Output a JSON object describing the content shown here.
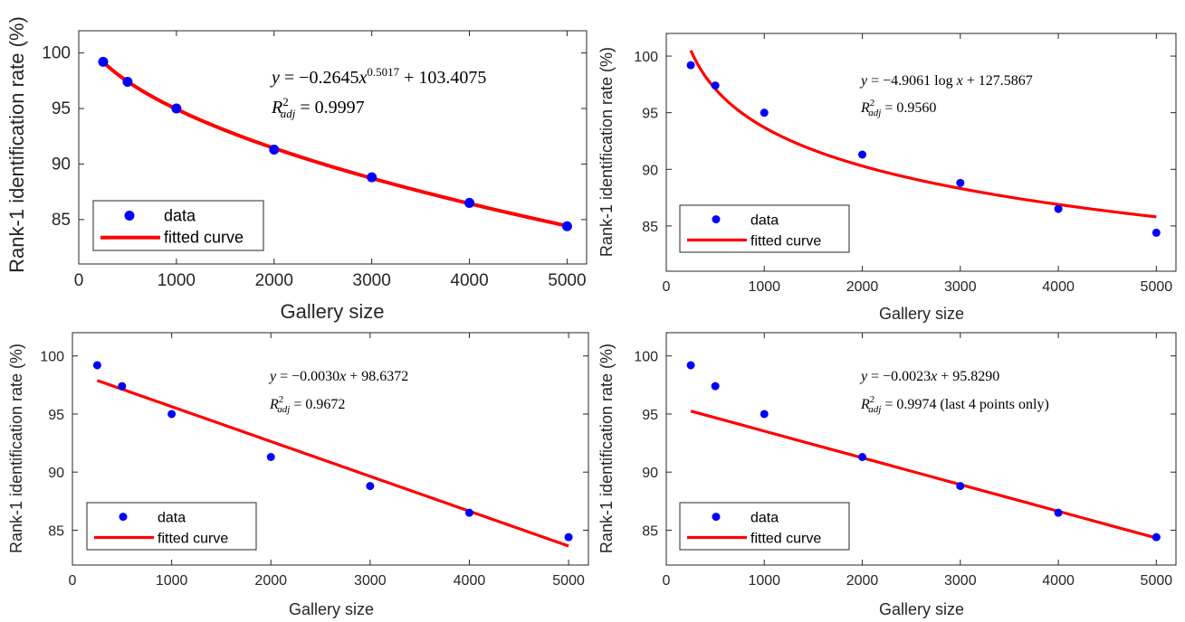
{
  "chart_data": [
    {
      "type": "scatter",
      "id": "top-left",
      "xlabel": "Gallery size",
      "ylabel": "Rank-1 identification rate (%)",
      "xlim": [
        0,
        5200
      ],
      "ylim": [
        81,
        102
      ],
      "xticks": [
        0,
        1000,
        2000,
        3000,
        4000,
        5000
      ],
      "yticks": [
        85,
        90,
        95,
        100
      ],
      "grid": false,
      "legend_position": "bottom-left",
      "legend": [
        "data",
        "fitted curve"
      ],
      "series": [
        {
          "name": "data",
          "x": [
            250,
            500,
            1000,
            2000,
            3000,
            4000,
            5000
          ],
          "y": [
            99.2,
            97.4,
            95.0,
            91.3,
            88.8,
            86.5,
            84.4
          ],
          "color": "#0000ff"
        },
        {
          "name": "fitted curve",
          "fit": {
            "model": "power",
            "a": -0.2645,
            "b": 0.5017,
            "c": 103.4075
          },
          "x_range": [
            250,
            5000
          ],
          "color": "#ff0000"
        }
      ],
      "equation_lines": [
        [
          {
            "t": "y",
            "it": true
          },
          {
            "t": " = −0.2645"
          },
          {
            "t": "x",
            "it": true
          },
          {
            "t": "0.5017",
            "sup": true
          },
          {
            "t": " + 103.4075"
          }
        ],
        [
          {
            "t": "R",
            "it": true
          },
          {
            "t": "2",
            "sup": true
          },
          {
            "t": "adj",
            "sub": true,
            "it": true
          },
          {
            "t": " = 0.9997"
          }
        ]
      ]
    },
    {
      "type": "scatter",
      "id": "top-right",
      "xlabel": "Gallery size",
      "ylabel": "Rank-1 identification rate (%)",
      "xlim": [
        0,
        5200
      ],
      "ylim": [
        81,
        102
      ],
      "xticks": [
        0,
        1000,
        2000,
        3000,
        4000,
        5000
      ],
      "yticks": [
        85,
        90,
        95,
        100
      ],
      "grid": false,
      "legend_position": "bottom-left",
      "legend": [
        "data",
        "fitted curve"
      ],
      "series": [
        {
          "name": "data",
          "x": [
            250,
            500,
            1000,
            2000,
            3000,
            4000,
            5000
          ],
          "y": [
            99.2,
            97.4,
            95.0,
            91.3,
            88.8,
            86.5,
            84.4
          ],
          "color": "#0000ff"
        },
        {
          "name": "fitted curve",
          "fit": {
            "model": "log",
            "a": -4.9061,
            "c": 127.5867
          },
          "x_range": [
            250,
            5000
          ],
          "color": "#ff0000"
        }
      ],
      "equation_lines": [
        [
          {
            "t": "y",
            "it": true
          },
          {
            "t": " = −4.9061 log "
          },
          {
            "t": "x",
            "it": true
          },
          {
            "t": " + 127.5867"
          }
        ],
        [
          {
            "t": "R",
            "it": true
          },
          {
            "t": "2",
            "sup": true
          },
          {
            "t": "adj",
            "sub": true,
            "it": true
          },
          {
            "t": " = 0.9560"
          }
        ]
      ]
    },
    {
      "type": "scatter",
      "id": "bottom-left",
      "xlabel": "Gallery size",
      "ylabel": "Rank-1 identification rate (%)",
      "xlim": [
        0,
        5200
      ],
      "ylim": [
        82,
        102
      ],
      "xticks": [
        0,
        1000,
        2000,
        3000,
        4000,
        5000
      ],
      "yticks": [
        85,
        90,
        95,
        100
      ],
      "grid": false,
      "legend_position": "bottom-left",
      "legend": [
        "data",
        "fitted curve"
      ],
      "series": [
        {
          "name": "data",
          "x": [
            250,
            500,
            1000,
            2000,
            3000,
            4000,
            5000
          ],
          "y": [
            99.2,
            97.4,
            95.0,
            91.3,
            88.8,
            86.5,
            84.4
          ],
          "color": "#0000ff"
        },
        {
          "name": "fitted curve",
          "fit": {
            "model": "linear",
            "a": -0.003,
            "c": 98.6372
          },
          "x_range": [
            250,
            5000
          ],
          "color": "#ff0000"
        }
      ],
      "equation_lines": [
        [
          {
            "t": "y",
            "it": true
          },
          {
            "t": " = −0.0030"
          },
          {
            "t": "x",
            "it": true
          },
          {
            "t": " + 98.6372"
          }
        ],
        [
          {
            "t": "R",
            "it": true
          },
          {
            "t": "2",
            "sup": true
          },
          {
            "t": "adj",
            "sub": true,
            "it": true
          },
          {
            "t": " = 0.9672"
          }
        ]
      ]
    },
    {
      "type": "scatter",
      "id": "bottom-right",
      "xlabel": "Gallery size",
      "ylabel": "Rank-1 identification rate (%)",
      "xlim": [
        0,
        5200
      ],
      "ylim": [
        82,
        102
      ],
      "xticks": [
        0,
        1000,
        2000,
        3000,
        4000,
        5000
      ],
      "yticks": [
        85,
        90,
        95,
        100
      ],
      "grid": false,
      "legend_position": "bottom-left",
      "legend": [
        "data",
        "fitted curve"
      ],
      "series": [
        {
          "name": "data",
          "x": [
            250,
            500,
            1000,
            2000,
            3000,
            4000,
            5000
          ],
          "y": [
            99.2,
            97.4,
            95.0,
            91.3,
            88.8,
            86.5,
            84.4
          ],
          "color": "#0000ff"
        },
        {
          "name": "fitted curve",
          "fit": {
            "model": "linear",
            "a": -0.0023,
            "c": 95.829
          },
          "x_range": [
            250,
            5000
          ],
          "color": "#ff0000"
        }
      ],
      "equation_lines": [
        [
          {
            "t": "y",
            "it": true
          },
          {
            "t": " = −0.0023"
          },
          {
            "t": "x",
            "it": true
          },
          {
            "t": " + 95.8290"
          }
        ],
        [
          {
            "t": "R",
            "it": true
          },
          {
            "t": "2",
            "sup": true
          },
          {
            "t": "adj",
            "sub": true,
            "it": true
          },
          {
            "t": " = 0.9974 (last 4 points only)"
          }
        ]
      ]
    }
  ]
}
